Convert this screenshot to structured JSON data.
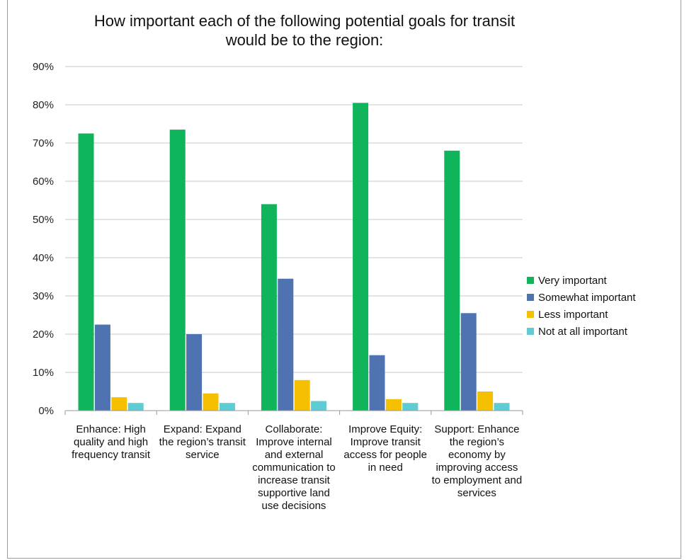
{
  "chart_data": {
    "type": "bar",
    "title": "How important each of the following potential goals for transit would be to the region:",
    "categories": [
      "Enhance: High quality and high frequency transit",
      "Expand: Expand the region’s transit service",
      "Collaborate: Improve internal and external communication to increase transit supportive land use decisions",
      "Improve Equity: Improve transit access for people in need",
      "Support: Enhance the region’s economy by improving access to employment and services"
    ],
    "series": [
      {
        "name": "Very important",
        "color": "#10b45a",
        "values": [
          72.5,
          73.5,
          54,
          80.5,
          68
        ]
      },
      {
        "name": "Somewhat important",
        "color": "#4f72b0",
        "values": [
          22.5,
          20,
          34.5,
          14.5,
          25.5
        ]
      },
      {
        "name": "Less important",
        "color": "#f5c000",
        "values": [
          3.5,
          4.5,
          8,
          3,
          5
        ]
      },
      {
        "name": "Not at all important",
        "color": "#5fcbd3",
        "values": [
          2,
          2,
          2.5,
          2,
          2
        ]
      }
    ],
    "yticks": [
      "0%",
      "10%",
      "20%",
      "30%",
      "40%",
      "50%",
      "60%",
      "70%",
      "80%",
      "90%"
    ],
    "ylim": [
      0,
      90
    ],
    "grid": true,
    "legend": "right"
  }
}
